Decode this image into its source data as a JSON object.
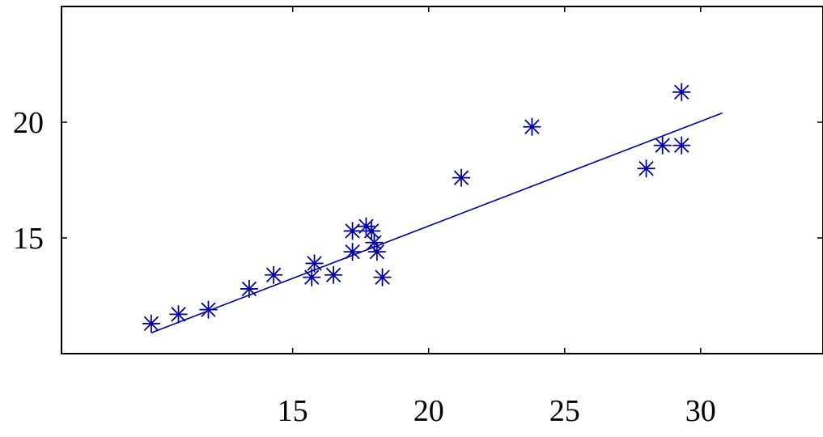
{
  "chart_data": {
    "type": "scatter",
    "title": "",
    "xlabel": "",
    "ylabel": "",
    "xlim": [
      6.5,
      34.5
    ],
    "ylim": [
      10,
      25
    ],
    "grid": false,
    "legend": "none",
    "x_ticks": [
      {
        "value": 15,
        "label": "15"
      },
      {
        "value": 20,
        "label": "20"
      },
      {
        "value": 25,
        "label": "25"
      },
      {
        "value": 30,
        "label": "30"
      }
    ],
    "y_ticks": [
      {
        "value": 15,
        "label": "15"
      },
      {
        "value": 20,
        "label": "20"
      }
    ],
    "series": [
      {
        "type": "scatter",
        "marker": "asterisk",
        "color": "#0000aa",
        "points": [
          {
            "x": 9.8,
            "y": 11.3
          },
          {
            "x": 10.8,
            "y": 11.7
          },
          {
            "x": 11.9,
            "y": 11.9
          },
          {
            "x": 13.4,
            "y": 12.8
          },
          {
            "x": 14.3,
            "y": 13.4
          },
          {
            "x": 15.7,
            "y": 13.3
          },
          {
            "x": 15.8,
            "y": 13.9
          },
          {
            "x": 16.5,
            "y": 13.4
          },
          {
            "x": 17.2,
            "y": 14.4
          },
          {
            "x": 17.2,
            "y": 15.3
          },
          {
            "x": 17.7,
            "y": 15.5
          },
          {
            "x": 17.9,
            "y": 15.3
          },
          {
            "x": 18.0,
            "y": 14.8
          },
          {
            "x": 18.1,
            "y": 14.4
          },
          {
            "x": 18.3,
            "y": 13.3
          },
          {
            "x": 21.2,
            "y": 17.6
          },
          {
            "x": 23.8,
            "y": 19.8
          },
          {
            "x": 28.0,
            "y": 18.0
          },
          {
            "x": 28.6,
            "y": 19.0
          },
          {
            "x": 29.3,
            "y": 19.0
          },
          {
            "x": 29.3,
            "y": 21.3
          }
        ]
      },
      {
        "type": "line",
        "color": "#0000aa",
        "points": [
          {
            "x": 9.8,
            "y": 10.9
          },
          {
            "x": 30.8,
            "y": 20.4
          }
        ]
      }
    ]
  }
}
